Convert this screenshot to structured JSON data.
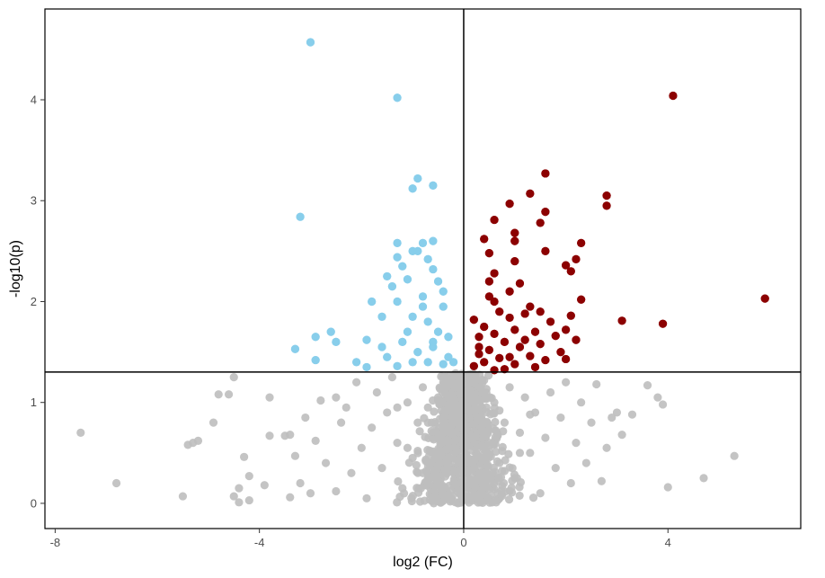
{
  "chart_data": {
    "type": "scatter",
    "title": "",
    "xlabel": "log2 (FC)",
    "ylabel": "-log10(p)",
    "xlim": [
      -8.2,
      6.6
    ],
    "ylim": [
      -0.25,
      4.9
    ],
    "xticks": [
      -8,
      -4,
      0,
      4
    ],
    "yticks": [
      0,
      1,
      2,
      3,
      4
    ],
    "reference_lines": {
      "x": 0,
      "y": 1.301
    },
    "grid": false,
    "legend": "none",
    "colors": {
      "down": "#87ceeb",
      "up": "#8b0000",
      "ns": "#bebebe"
    },
    "series": [
      {
        "group": "down",
        "points": [
          [
            -3.0,
            4.57
          ],
          [
            -1.3,
            4.02
          ],
          [
            -3.2,
            2.84
          ],
          [
            -0.9,
            3.22
          ],
          [
            -1.0,
            3.12
          ],
          [
            -0.6,
            3.15
          ],
          [
            -1.3,
            2.58
          ],
          [
            -0.8,
            2.58
          ],
          [
            -0.6,
            2.6
          ],
          [
            -1.0,
            2.5
          ],
          [
            -0.9,
            2.5
          ],
          [
            -1.3,
            2.44
          ],
          [
            -0.7,
            2.42
          ],
          [
            -1.2,
            2.35
          ],
          [
            -0.6,
            2.32
          ],
          [
            -1.5,
            2.25
          ],
          [
            -1.1,
            2.22
          ],
          [
            -0.5,
            2.2
          ],
          [
            -1.4,
            2.15
          ],
          [
            -1.8,
            2.0
          ],
          [
            -0.8,
            2.05
          ],
          [
            -1.3,
            2.0
          ],
          [
            -0.4,
            1.95
          ],
          [
            -2.6,
            1.7
          ],
          [
            -1.6,
            1.85
          ],
          [
            -1.0,
            1.85
          ],
          [
            -0.7,
            1.8
          ],
          [
            -2.9,
            1.65
          ],
          [
            -2.5,
            1.6
          ],
          [
            -3.3,
            1.53
          ],
          [
            -1.9,
            1.62
          ],
          [
            -1.2,
            1.6
          ],
          [
            -0.5,
            1.7
          ],
          [
            -0.3,
            1.65
          ],
          [
            -2.9,
            1.42
          ],
          [
            -2.1,
            1.4
          ],
          [
            -1.5,
            1.45
          ],
          [
            -0.9,
            1.5
          ],
          [
            -0.6,
            1.55
          ],
          [
            -0.3,
            1.45
          ],
          [
            -1.9,
            1.35
          ],
          [
            -1.3,
            1.36
          ],
          [
            -0.7,
            1.4
          ],
          [
            -0.4,
            1.38
          ],
          [
            -0.2,
            1.4
          ],
          [
            -1.6,
            1.55
          ],
          [
            -1.1,
            1.7
          ],
          [
            -0.8,
            1.95
          ],
          [
            -0.4,
            2.1
          ],
          [
            -0.6,
            1.6
          ],
          [
            -1.0,
            1.4
          ]
        ]
      },
      {
        "group": "up",
        "points": [
          [
            4.1,
            4.04
          ],
          [
            1.6,
            3.27
          ],
          [
            1.3,
            3.07
          ],
          [
            2.8,
            3.05
          ],
          [
            2.8,
            2.95
          ],
          [
            0.9,
            2.97
          ],
          [
            1.6,
            2.89
          ],
          [
            0.6,
            2.81
          ],
          [
            1.5,
            2.78
          ],
          [
            1.0,
            2.68
          ],
          [
            0.4,
            2.62
          ],
          [
            1.0,
            2.6
          ],
          [
            2.3,
            2.58
          ],
          [
            1.6,
            2.5
          ],
          [
            0.5,
            2.48
          ],
          [
            2.2,
            2.42
          ],
          [
            1.0,
            2.4
          ],
          [
            2.0,
            2.36
          ],
          [
            2.1,
            2.3
          ],
          [
            0.6,
            2.28
          ],
          [
            0.5,
            2.2
          ],
          [
            1.1,
            2.18
          ],
          [
            0.9,
            2.1
          ],
          [
            0.5,
            2.05
          ],
          [
            0.6,
            2.0
          ],
          [
            2.3,
            2.02
          ],
          [
            1.3,
            1.95
          ],
          [
            1.5,
            1.9
          ],
          [
            1.2,
            1.88
          ],
          [
            2.1,
            1.86
          ],
          [
            0.9,
            1.84
          ],
          [
            0.2,
            1.82
          ],
          [
            1.7,
            1.8
          ],
          [
            3.1,
            1.81
          ],
          [
            3.9,
            1.78
          ],
          [
            0.4,
            1.75
          ],
          [
            1.0,
            1.72
          ],
          [
            1.4,
            1.7
          ],
          [
            2.0,
            1.72
          ],
          [
            0.6,
            1.68
          ],
          [
            0.3,
            1.65
          ],
          [
            1.8,
            1.66
          ],
          [
            2.2,
            1.62
          ],
          [
            0.8,
            1.6
          ],
          [
            1.5,
            1.58
          ],
          [
            1.1,
            1.55
          ],
          [
            0.5,
            1.52
          ],
          [
            1.9,
            1.5
          ],
          [
            0.3,
            1.48
          ],
          [
            1.3,
            1.46
          ],
          [
            0.7,
            1.44
          ],
          [
            2.0,
            1.43
          ],
          [
            1.6,
            1.42
          ],
          [
            0.4,
            1.4
          ],
          [
            1.0,
            1.38
          ],
          [
            0.2,
            1.36
          ],
          [
            1.4,
            1.35
          ],
          [
            0.8,
            1.33
          ],
          [
            0.6,
            1.32
          ],
          [
            5.9,
            2.03
          ],
          [
            0.3,
            1.55
          ],
          [
            0.7,
            1.9
          ],
          [
            1.2,
            1.62
          ],
          [
            0.9,
            1.45
          ]
        ]
      },
      {
        "group": "ns",
        "points": [
          [
            -7.5,
            0.7
          ],
          [
            -6.8,
            0.2
          ],
          [
            -5.5,
            0.07
          ],
          [
            -5.4,
            0.58
          ],
          [
            -5.3,
            0.6
          ],
          [
            -5.2,
            0.62
          ],
          [
            -4.9,
            0.8
          ],
          [
            -4.8,
            1.08
          ],
          [
            -4.6,
            1.08
          ],
          [
            -4.5,
            1.25
          ],
          [
            -4.5,
            0.07
          ],
          [
            -4.4,
            0.15
          ],
          [
            -4.4,
            0.01
          ],
          [
            -4.3,
            0.46
          ],
          [
            -4.2,
            0.27
          ],
          [
            -4.2,
            0.03
          ],
          [
            -3.9,
            0.18
          ],
          [
            -3.8,
            0.67
          ],
          [
            -3.8,
            1.05
          ],
          [
            -3.5,
            0.67
          ],
          [
            -3.4,
            0.68
          ],
          [
            -3.4,
            0.06
          ],
          [
            -3.3,
            0.47
          ],
          [
            -3.2,
            0.2
          ],
          [
            -3.1,
            0.85
          ],
          [
            -3.0,
            0.1
          ],
          [
            -2.9,
            0.62
          ],
          [
            -2.8,
            1.02
          ],
          [
            -2.7,
            0.4
          ],
          [
            -2.5,
            1.05
          ],
          [
            -2.5,
            0.12
          ],
          [
            -2.4,
            0.8
          ],
          [
            -2.3,
            0.95
          ],
          [
            -2.2,
            0.3
          ],
          [
            -2.1,
            1.2
          ],
          [
            -2.0,
            0.55
          ],
          [
            -1.9,
            0.05
          ],
          [
            -1.8,
            0.75
          ],
          [
            -1.7,
            1.1
          ],
          [
            -1.6,
            0.35
          ],
          [
            -1.5,
            0.9
          ],
          [
            -1.4,
            1.25
          ],
          [
            -1.3,
            0.6
          ],
          [
            -1.2,
            0.15
          ],
          [
            -1.1,
            1.0
          ],
          [
            -1.0,
            0.45
          ],
          [
            -0.9,
            0.8
          ],
          [
            -0.8,
            1.15
          ],
          [
            -0.7,
            0.25
          ],
          [
            -0.6,
            0.7
          ],
          [
            -0.5,
            1.05
          ],
          [
            -0.4,
            0.5
          ],
          [
            -0.3,
            0.9
          ],
          [
            -0.2,
            0.2
          ],
          [
            -0.1,
            0.65
          ],
          [
            0.0,
            1.1
          ],
          [
            0.1,
            0.35
          ],
          [
            0.2,
            0.85
          ],
          [
            0.3,
            1.2
          ],
          [
            0.4,
            0.15
          ],
          [
            0.5,
            0.6
          ],
          [
            0.6,
            1.0
          ],
          [
            0.7,
            0.4
          ],
          [
            0.8,
            0.8
          ],
          [
            0.9,
            1.15
          ],
          [
            1.0,
            0.25
          ],
          [
            1.1,
            0.7
          ],
          [
            1.2,
            1.05
          ],
          [
            1.3,
            0.5
          ],
          [
            1.4,
            0.9
          ],
          [
            1.5,
            0.1
          ],
          [
            1.6,
            0.65
          ],
          [
            1.7,
            1.1
          ],
          [
            1.8,
            0.35
          ],
          [
            1.9,
            0.85
          ],
          [
            2.0,
            1.2
          ],
          [
            2.1,
            0.2
          ],
          [
            2.2,
            0.6
          ],
          [
            2.3,
            1.0
          ],
          [
            2.4,
            0.4
          ],
          [
            2.5,
            0.8
          ],
          [
            2.6,
            1.18
          ],
          [
            2.7,
            0.22
          ],
          [
            2.8,
            0.55
          ],
          [
            2.9,
            0.85
          ],
          [
            3.0,
            0.9
          ],
          [
            3.1,
            0.68
          ],
          [
            3.3,
            0.88
          ],
          [
            3.6,
            1.17
          ],
          [
            3.8,
            1.05
          ],
          [
            3.9,
            0.98
          ],
          [
            4.0,
            0.16
          ],
          [
            4.7,
            0.25
          ],
          [
            5.3,
            0.47
          ],
          [
            -0.3,
            0.05
          ],
          [
            0.3,
            0.08
          ],
          [
            -0.6,
            0.12
          ],
          [
            0.6,
            0.14
          ],
          [
            -0.2,
            1.25
          ],
          [
            0.2,
            1.28
          ],
          [
            -0.4,
            1.2
          ],
          [
            0.4,
            1.22
          ],
          [
            -0.8,
            0.3
          ],
          [
            0.8,
            0.32
          ],
          [
            -1.1,
            0.55
          ],
          [
            1.1,
            0.5
          ],
          [
            -0.15,
            0.95
          ],
          [
            0.15,
            0.98
          ],
          [
            -0.5,
            0.3
          ],
          [
            0.5,
            0.28
          ],
          [
            -0.7,
            0.95
          ],
          [
            0.7,
            0.92
          ],
          [
            -1.3,
            0.95
          ],
          [
            1.3,
            0.88
          ]
        ]
      }
    ]
  }
}
